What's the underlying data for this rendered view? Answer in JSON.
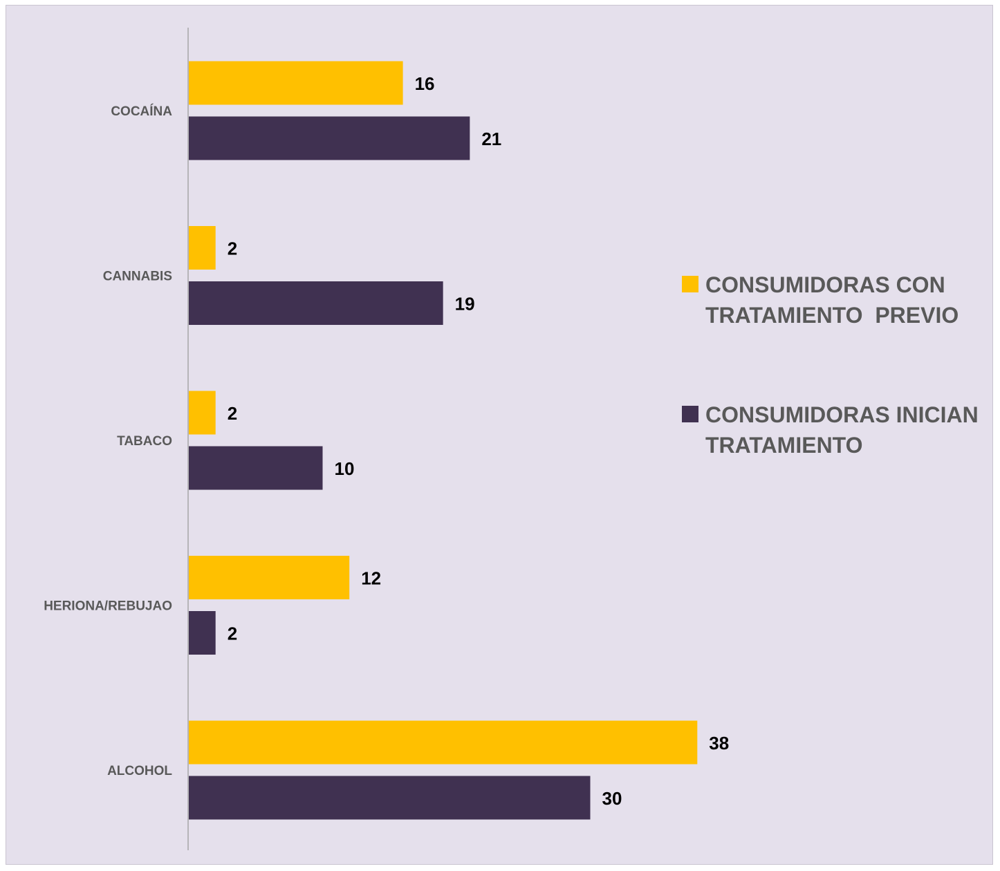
{
  "chart_data": {
    "type": "bar",
    "orientation": "horizontal",
    "categories": [
      "COCAÍNA",
      "CANNABIS",
      "TABACO",
      "HERIONA/REBUJAO",
      "ALCOHOL"
    ],
    "series": [
      {
        "name": "CONSUMIDORAS CON TRATAMIENTO  PREVIO",
        "color": "#ffc000",
        "values": [
          16,
          2,
          2,
          12,
          38
        ]
      },
      {
        "name": "CONSUMIDORAS INICIAN TRATAMIENTO",
        "color": "#403151",
        "values": [
          21,
          19,
          10,
          2,
          30
        ]
      }
    ],
    "data_labels": true,
    "grid": false,
    "legend_position": "right",
    "xlim": [
      0,
      38
    ]
  },
  "legend": {
    "series_0_line1": "CONSUMIDORAS CON",
    "series_0_line2": "TRATAMIENTO  PREVIO",
    "series_1_line1": "CONSUMIDORAS INICIAN",
    "series_1_line2": "TRATAMIENTO"
  },
  "colors": {
    "background": "#e5e0ec",
    "axis": "#a6a6a6",
    "category_text": "#595959",
    "value_text": "#000000"
  }
}
